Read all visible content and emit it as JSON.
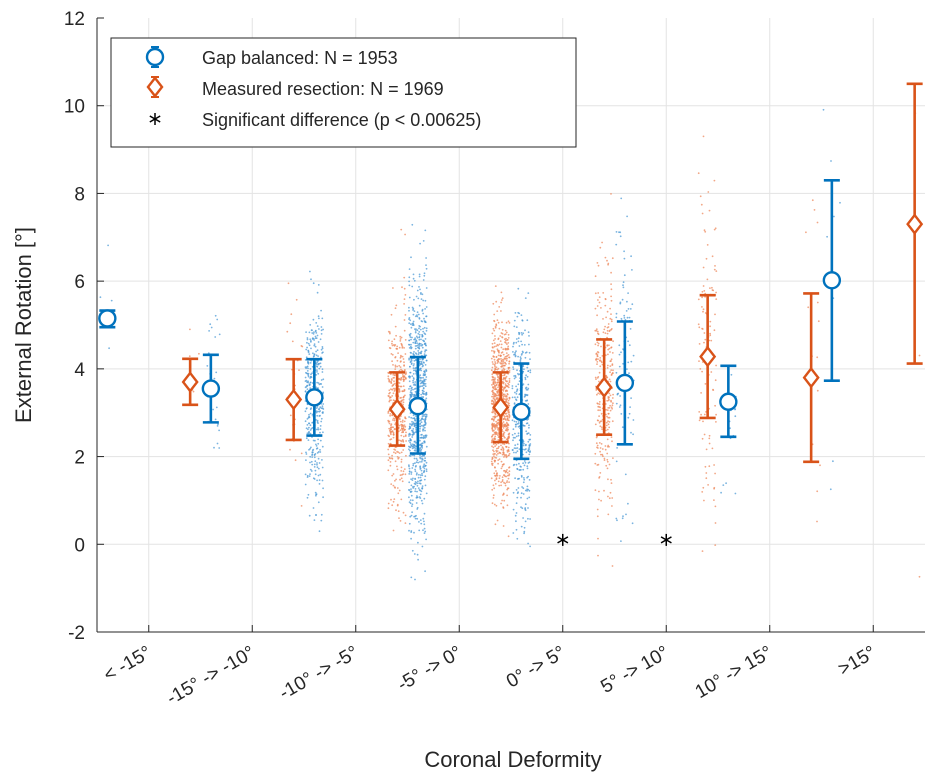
{
  "chart_data": {
    "type": "scatter",
    "xlabel": "Coronal Deformity",
    "ylabel": "External Rotation [°]",
    "ylim": [
      -2,
      12
    ],
    "yticks": [
      -2,
      0,
      2,
      4,
      6,
      8,
      10,
      12
    ],
    "grid": true,
    "legend": "top-left",
    "categories": [
      "< -15°",
      "-15° -> -10°",
      "-10° -> -5°",
      "-5° -> 0°",
      "0° -> 5°",
      "5° -> 10°",
      "10° -> 15°",
      ">15°"
    ],
    "series": [
      {
        "name": "Gap balanced: N = 1953",
        "color": "#0072BD",
        "marker": "circle",
        "mean": [
          5.15,
          3.55,
          3.35,
          3.15,
          3.02,
          3.68,
          3.25,
          6.02
        ],
        "lower": [
          4.95,
          2.78,
          2.48,
          2.07,
          1.95,
          2.28,
          2.45,
          3.73
        ],
        "upper": [
          5.33,
          4.32,
          4.22,
          4.27,
          4.12,
          5.08,
          4.07,
          8.3
        ],
        "point_density": [
          4,
          25,
          380,
          820,
          340,
          90,
          16,
          8
        ]
      },
      {
        "name": "Measured resection: N = 1969",
        "color": "#D95319",
        "marker": "diamond",
        "mean": [
          3.7,
          3.3,
          3.08,
          3.12,
          3.58,
          4.28,
          3.8,
          7.3
        ],
        "lower": [
          3.18,
          2.38,
          2.25,
          2.33,
          2.5,
          2.88,
          1.88,
          4.12
        ],
        "upper": [
          4.23,
          4.22,
          3.92,
          3.92,
          4.67,
          5.68,
          5.72,
          10.5
        ],
        "point_density": [
          5,
          28,
          420,
          800,
          300,
          110,
          15,
          3
        ]
      }
    ],
    "significant": {
      "name": "Significant difference (p < 0.00625)",
      "marker": "asterisk",
      "color": "#000000",
      "categories": [
        "0° -> 5°",
        "5° -> 10°"
      ],
      "y": 0.1
    }
  }
}
